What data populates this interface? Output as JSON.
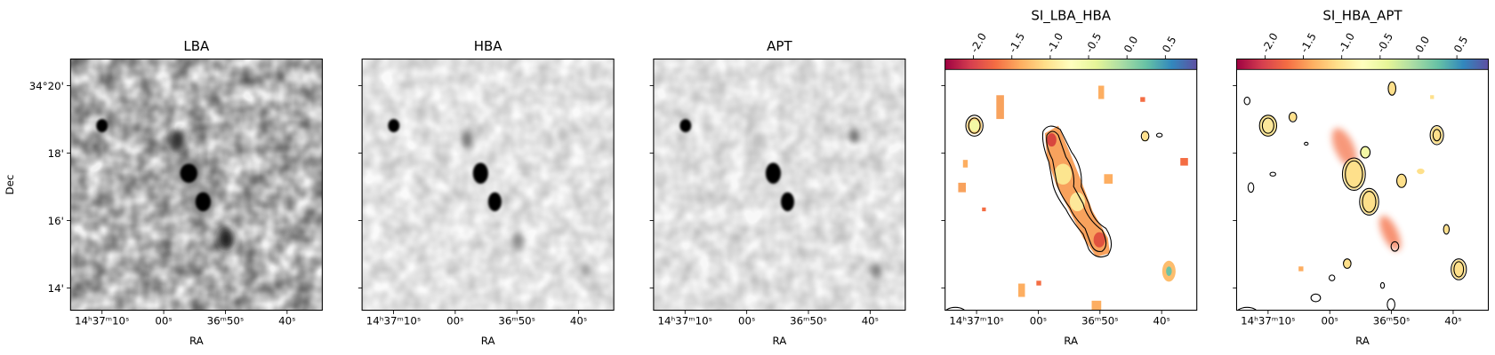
{
  "chart_data": [
    {
      "type": "image",
      "title": "LBA",
      "xlabel": "RA",
      "ylabel": "Dec",
      "xlim": [
        75.1,
        34.3
      ],
      "xticks": [
        {
          "value": 70,
          "label": "14ʰ37ᵐ10ˢ"
        },
        {
          "value": 60,
          "label": "00ˢ"
        },
        {
          "value": 50,
          "label": "36ᵐ50ˢ"
        },
        {
          "value": 40,
          "label": "40ˢ"
        }
      ],
      "ylim": [
        13.34,
        20.79
      ],
      "yticks": [
        {
          "value": 20,
          "label": "34°20'"
        },
        {
          "value": 18,
          "label": "18'"
        },
        {
          "value": 16,
          "label": "16'"
        },
        {
          "value": 14,
          "label": "14'"
        }
      ]
    },
    {
      "type": "image",
      "title": "HBA",
      "xlabel": "RA",
      "xlim": [
        75.1,
        34.3
      ],
      "xticks": [
        {
          "value": 70,
          "label": "14ʰ37ᵐ10ˢ"
        },
        {
          "value": 60,
          "label": "00ˢ"
        },
        {
          "value": 50,
          "label": "36ᵐ50ˢ"
        },
        {
          "value": 40,
          "label": "40ˢ"
        }
      ],
      "ylim": [
        13.34,
        20.79
      ],
      "yticks": [
        20,
        18,
        16,
        14
      ]
    },
    {
      "type": "image",
      "title": "APT",
      "xlabel": "RA",
      "xlim": [
        75.1,
        34.3
      ],
      "xticks": [
        {
          "value": 70,
          "label": "14ʰ37ᵐ10ˢ"
        },
        {
          "value": 60,
          "label": "00ˢ"
        },
        {
          "value": 50,
          "label": "36ᵐ50ˢ"
        },
        {
          "value": 40,
          "label": "40ˢ"
        }
      ],
      "ylim": [
        13.34,
        20.79
      ],
      "yticks": [
        20,
        18,
        16,
        14
      ]
    },
    {
      "type": "image",
      "title": "SI_LBA_HBA",
      "xlabel": "RA",
      "xlim": [
        75.1,
        34.3
      ],
      "xticks": [
        {
          "value": 70,
          "label": "14ʰ37ᵐ10ˢ"
        },
        {
          "value": 60,
          "label": "00ˢ"
        },
        {
          "value": 50,
          "label": "36ᵐ50ˢ"
        },
        {
          "value": 40,
          "label": "40ˢ"
        }
      ],
      "ylim": [
        13.34,
        20.79
      ],
      "yticks": [
        20,
        18,
        16,
        14
      ],
      "colorbar": {
        "colors": [
          "#9e0142",
          "#d53e4f",
          "#f46d43",
          "#fdae61",
          "#fee08b",
          "#ffffbf",
          "#e6f598",
          "#abdda4",
          "#66c2a5",
          "#3288bd",
          "#5e4fa2"
        ],
        "lim": [
          -2.37,
          0.91
        ],
        "ticks": [
          {
            "value": -2,
            "label": "-2.0"
          },
          -1.5,
          {
            "value": -1,
            "label": "-1.0"
          },
          -0.5,
          {
            "value": 0,
            "label": "0.0"
          },
          0.5
        ]
      }
    },
    {
      "type": "image",
      "title": "SI_HBA_APT",
      "xlabel": "RA",
      "xlim": [
        75.1,
        34.3
      ],
      "xticks": [
        {
          "value": 70,
          "label": "14ʰ37ᵐ10ˢ"
        },
        {
          "value": 60,
          "label": "00ˢ"
        },
        {
          "value": 50,
          "label": "36ᵐ50ˢ"
        },
        {
          "value": 40,
          "label": "40ˢ"
        }
      ],
      "ylim": [
        13.34,
        20.79
      ],
      "yticks": [
        20,
        18,
        16,
        14
      ],
      "colorbar": {
        "colors": [
          "#9e0142",
          "#d53e4f",
          "#f46d43",
          "#fdae61",
          "#fee08b",
          "#ffffbf",
          "#e6f598",
          "#abdda4",
          "#66c2a5",
          "#3288bd",
          "#5e4fa2"
        ],
        "lim": [
          -2.37,
          0.91
        ],
        "ticks": [
          {
            "value": -2,
            "label": "-2.0"
          },
          -1.5,
          {
            "value": -1,
            "label": "-1.0"
          },
          -0.5,
          {
            "value": 0,
            "label": "0.0"
          },
          0.5
        ]
      }
    }
  ]
}
